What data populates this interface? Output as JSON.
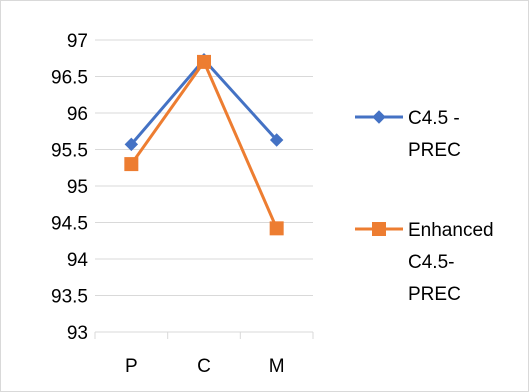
{
  "chart_data": {
    "type": "line",
    "title": "",
    "xlabel": "",
    "ylabel": "",
    "categories": [
      "P",
      "C",
      "M"
    ],
    "ylim": [
      93,
      97
    ],
    "yticks": [
      93,
      93.5,
      94,
      94.5,
      95,
      95.5,
      96,
      96.5,
      97
    ],
    "ytick_labels": [
      "93",
      "93.5",
      "94",
      "94.5",
      "95",
      "95.5",
      "96",
      "96.5",
      "97"
    ],
    "grid": true,
    "legend_position": "right",
    "series": [
      {
        "name": "C4.5 - PREC",
        "legend_lines": [
          "C4.5 -",
          "PREC"
        ],
        "color": "#4472c4",
        "marker": "diamond",
        "values": [
          95.57,
          96.73,
          95.63
        ]
      },
      {
        "name": "Enhanced C4.5-PREC",
        "legend_lines": [
          "Enhanced",
          "C4.5-",
          "PREC"
        ],
        "color": "#ed7d31",
        "marker": "square",
        "values": [
          95.3,
          96.7,
          94.42
        ]
      }
    ]
  }
}
